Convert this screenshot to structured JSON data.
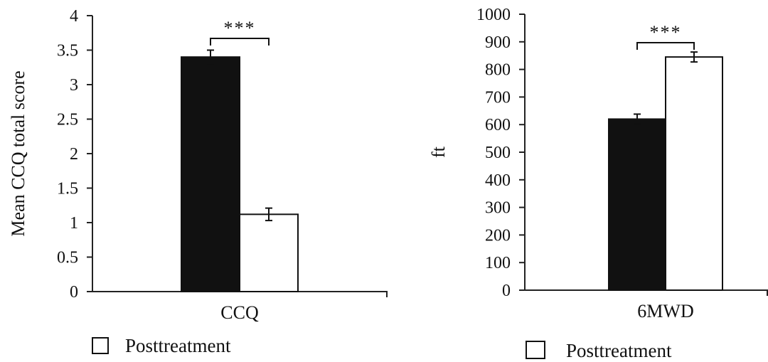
{
  "chart_data": [
    {
      "type": "bar",
      "categories": [
        "CCQ"
      ],
      "series": [
        {
          "name": "",
          "values": [
            3.4
          ],
          "error": [
            0.1
          ],
          "color": "#111111"
        },
        {
          "name": "Posttreatment",
          "values": [
            1.12
          ],
          "error": [
            0.09
          ],
          "color": "#ffffff"
        }
      ],
      "ylabel": "Mean CCQ total score",
      "xlabel": "",
      "ylim": [
        0,
        4
      ],
      "yticks": [
        "0",
        "0.5",
        "1",
        "1.5",
        "2",
        "2.5",
        "3",
        "3.5",
        "4"
      ],
      "significance": "***",
      "legend": {
        "entries": [
          "Posttreatment"
        ],
        "placement": "bottom-left"
      }
    },
    {
      "type": "bar",
      "categories": [
        "6MWD"
      ],
      "series": [
        {
          "name": "",
          "values": [
            620
          ],
          "error": [
            18
          ],
          "color": "#111111"
        },
        {
          "name": "Posttreatment",
          "values": [
            845
          ],
          "error": [
            18
          ],
          "color": "#ffffff"
        }
      ],
      "ylabel": "ft",
      "xlabel": "",
      "ylim": [
        0,
        1000
      ],
      "yticks": [
        "0",
        "100",
        "200",
        "300",
        "400",
        "500",
        "600",
        "700",
        "800",
        "900",
        "1000"
      ],
      "significance": "***",
      "legend": {
        "entries": [
          "Posttreatment"
        ],
        "placement": "bottom-left"
      }
    }
  ]
}
